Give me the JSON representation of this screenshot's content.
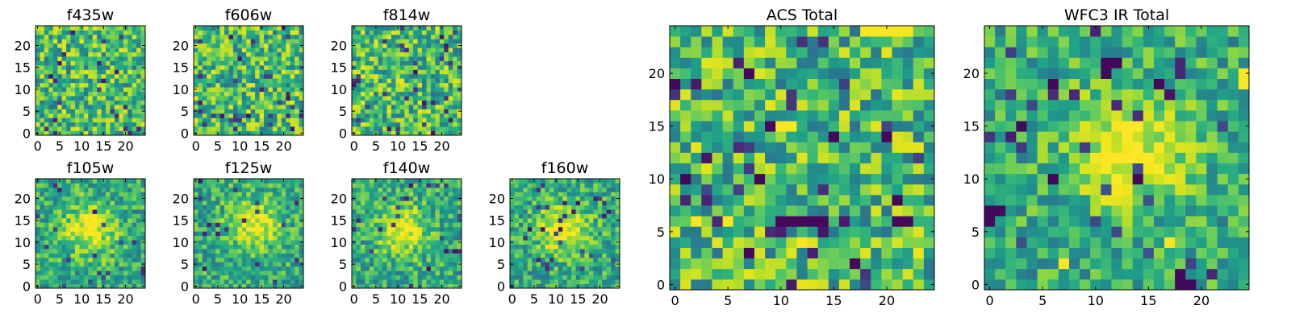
{
  "chart_data": [
    {
      "type": "heatmap",
      "title": "f435w",
      "grid": "25x25",
      "colormap": "viridis",
      "xlim": [
        0,
        24
      ],
      "ylim": [
        0,
        24
      ],
      "xticks": [
        "0",
        "5",
        "10",
        "15",
        "20"
      ],
      "yticks": [
        "0",
        "5",
        "10",
        "15",
        "20"
      ],
      "character": "noise"
    },
    {
      "type": "heatmap",
      "title": "f606w",
      "grid": "25x25",
      "colormap": "viridis",
      "xlim": [
        0,
        24
      ],
      "ylim": [
        0,
        24
      ],
      "xticks": [
        "0",
        "5",
        "10",
        "15",
        "20"
      ],
      "yticks": [
        "0",
        "5",
        "10",
        "15",
        "20"
      ],
      "character": "noise"
    },
    {
      "type": "heatmap",
      "title": "f814w",
      "grid": "25x25",
      "colormap": "viridis",
      "xlim": [
        0,
        24
      ],
      "ylim": [
        0,
        24
      ],
      "xticks": [
        "0",
        "5",
        "10",
        "15",
        "20"
      ],
      "yticks": [
        "0",
        "5",
        "10",
        "15",
        "20"
      ],
      "character": "noise"
    },
    {
      "type": "heatmap",
      "title": "f105w",
      "grid": "25x25",
      "colormap": "viridis",
      "xlim": [
        0,
        24
      ],
      "ylim": [
        0,
        24
      ],
      "xticks": [
        "0",
        "5",
        "10",
        "15",
        "20"
      ],
      "yticks": [
        "0",
        "5",
        "10",
        "15",
        "20"
      ],
      "character": "bright central source",
      "blob_center": [
        12,
        13
      ]
    },
    {
      "type": "heatmap",
      "title": "f125w",
      "grid": "25x25",
      "colormap": "viridis",
      "xlim": [
        0,
        24
      ],
      "ylim": [
        0,
        24
      ],
      "xticks": [
        "0",
        "5",
        "10",
        "15",
        "20"
      ],
      "yticks": [
        "0",
        "5",
        "10",
        "15",
        "20"
      ],
      "character": "bright central source",
      "blob_center": [
        13,
        14
      ]
    },
    {
      "type": "heatmap",
      "title": "f140w",
      "grid": "25x25",
      "colormap": "viridis",
      "xlim": [
        0,
        24
      ],
      "ylim": [
        0,
        24
      ],
      "xticks": [
        "0",
        "5",
        "10",
        "15",
        "20"
      ],
      "yticks": [
        "0",
        "5",
        "10",
        "15",
        "20"
      ],
      "character": "bright central source",
      "blob_center": [
        11,
        13
      ]
    },
    {
      "type": "heatmap",
      "title": "f160w",
      "grid": "25x25",
      "colormap": "viridis",
      "xlim": [
        0,
        24
      ],
      "ylim": [
        0,
        24
      ],
      "xticks": [
        "0",
        "5",
        "10",
        "15",
        "20"
      ],
      "yticks": [
        "0",
        "5",
        "10",
        "15",
        "20"
      ],
      "character": "bright central source",
      "blob_center": [
        12,
        13
      ]
    },
    {
      "type": "heatmap",
      "title": "ACS Total",
      "grid": "25x25",
      "colormap": "viridis",
      "xlim": [
        0,
        24
      ],
      "ylim": [
        0,
        24
      ],
      "xticks": [
        "0",
        "5",
        "10",
        "15",
        "20"
      ],
      "yticks": [
        "0",
        "5",
        "10",
        "15",
        "20"
      ],
      "character": "noise",
      "dark_pixels": [
        [
          0,
          19
        ],
        [
          7,
          20
        ],
        [
          9,
          15
        ],
        [
          8,
          10
        ],
        [
          15,
          14
        ],
        [
          20,
          14
        ],
        [
          10,
          6
        ],
        [
          11,
          6
        ],
        [
          12,
          6
        ],
        [
          13,
          6
        ],
        [
          14,
          6
        ],
        [
          21,
          6
        ],
        [
          22,
          6
        ],
        [
          7,
          3
        ],
        [
          17,
          2
        ],
        [
          21,
          8
        ],
        [
          1,
          10
        ]
      ],
      "bright_pixels": [
        [
          18,
          24
        ],
        [
          19,
          24
        ],
        [
          20,
          24
        ],
        [
          21,
          24
        ],
        [
          22,
          24
        ],
        [
          10,
          15
        ],
        [
          11,
          15
        ],
        [
          2,
          6
        ],
        [
          5,
          6
        ],
        [
          12,
          4
        ]
      ]
    },
    {
      "type": "heatmap",
      "title": "WFC3 IR Total",
      "grid": "25x25",
      "colormap": "viridis",
      "xlim": [
        0,
        24
      ],
      "ylim": [
        0,
        24
      ],
      "xticks": [
        "0",
        "5",
        "10",
        "15",
        "20"
      ],
      "yticks": [
        "0",
        "5",
        "10",
        "15",
        "20"
      ],
      "character": "bright central source",
      "blob_center": [
        13,
        13
      ],
      "dark_pixels": [
        [
          11,
          21
        ],
        [
          11,
          20
        ],
        [
          12,
          21
        ],
        [
          0,
          7
        ],
        [
          0,
          6
        ],
        [
          1,
          7
        ],
        [
          3,
          15
        ],
        [
          18,
          0
        ],
        [
          19,
          0
        ],
        [
          18,
          1
        ],
        [
          6,
          10
        ],
        [
          14,
          10
        ],
        [
          16,
          19
        ],
        [
          6,
          19
        ]
      ],
      "bright_pixels": [
        [
          24,
          20
        ],
        [
          24,
          19
        ],
        [
          7,
          2
        ],
        [
          17,
          4
        ]
      ]
    }
  ]
}
